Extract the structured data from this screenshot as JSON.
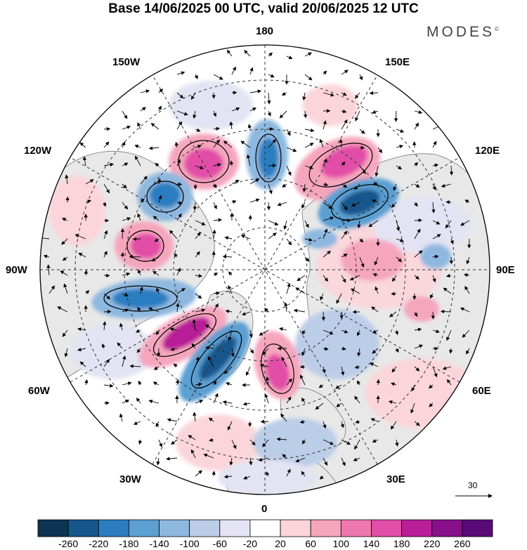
{
  "title": "Base 14/06/2025 00 UTC, valid 20/06/2025 12 UTC",
  "brand": "MODES",
  "brand_mark": "©",
  "longitude_labels": {
    "top": "180",
    "top_left": "150W",
    "top_right": "150E",
    "upper_left": "120W",
    "upper_right": "120E",
    "left": "90W",
    "right": "90E",
    "lower_left": "60W",
    "lower_right": "60E",
    "bottom_left": "30W",
    "bottom_right": "30E",
    "bottom": "0"
  },
  "reference_vector": {
    "label": "30"
  },
  "colorbar": {
    "labels": [
      "-260",
      "-220",
      "-180",
      "-140",
      "-100",
      "-60",
      "-20",
      "20",
      "60",
      "100",
      "140",
      "180",
      "220",
      "260"
    ],
    "colors": [
      "#0d3452",
      "#15578c",
      "#2c7dc0",
      "#5c9fd2",
      "#8eb8df",
      "#bccde8",
      "#e3e3f3",
      "#ffffff",
      "#fbd5da",
      "#f5a6bd",
      "#ee78ad",
      "#e14ea7",
      "#b81f98",
      "#88108b",
      "#5a0a78"
    ]
  },
  "palette": {
    "land": "#e8e8e8",
    "coast": "#777777",
    "grid": "#333333"
  }
}
